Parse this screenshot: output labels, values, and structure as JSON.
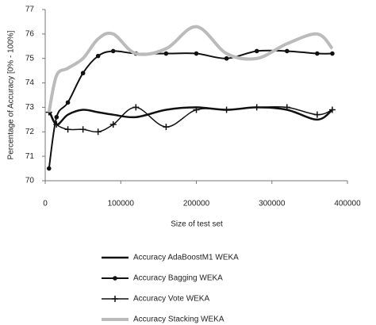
{
  "chart_data": {
    "type": "line",
    "y_label": "Percentage of Accuracy [0% - 100%]",
    "x_label": "Size of test set",
    "x": [
      5000,
      15000,
      30000,
      50000,
      70000,
      90000,
      120000,
      160000,
      200000,
      240000,
      280000,
      320000,
      360000,
      380000
    ],
    "series": [
      {
        "name": "Accuracy AdaBoostM1 WEKA",
        "color": "#111111",
        "marker": "none",
        "values": [
          72.9,
          72.3,
          72.7,
          72.9,
          72.8,
          72.7,
          72.6,
          72.9,
          73.0,
          72.9,
          73.0,
          72.9,
          72.5,
          72.9
        ]
      },
      {
        "name": "Accuracy Bagging WEKA",
        "color": "#111111",
        "marker": "dot",
        "values": [
          70.5,
          72.6,
          73.2,
          74.4,
          75.1,
          75.3,
          75.2,
          75.2,
          75.2,
          75.0,
          75.3,
          75.3,
          75.2,
          75.2
        ]
      },
      {
        "name": "Accuracy Vote WEKA",
        "color": "#111111",
        "marker": "plus",
        "values": [
          72.8,
          72.3,
          72.1,
          72.1,
          72.0,
          72.3,
          73.0,
          72.2,
          72.9,
          72.9,
          73.0,
          73.0,
          72.7,
          72.9
        ]
      },
      {
        "name": "Accuracy Stacking WEKA",
        "color": "#bbbbbb",
        "marker": "none",
        "values": [
          72.8,
          74.3,
          74.6,
          75.0,
          75.8,
          76.0,
          75.2,
          75.4,
          76.3,
          75.2,
          75.0,
          75.6,
          76.0,
          75.4
        ]
      }
    ],
    "xlim": [
      0,
      400000
    ],
    "xticks": [
      0,
      100000,
      200000,
      300000,
      400000
    ],
    "ylim": [
      70,
      77
    ],
    "yticks": [
      70,
      71,
      72,
      73,
      74,
      75,
      76,
      77
    ],
    "legend": "bottom"
  }
}
